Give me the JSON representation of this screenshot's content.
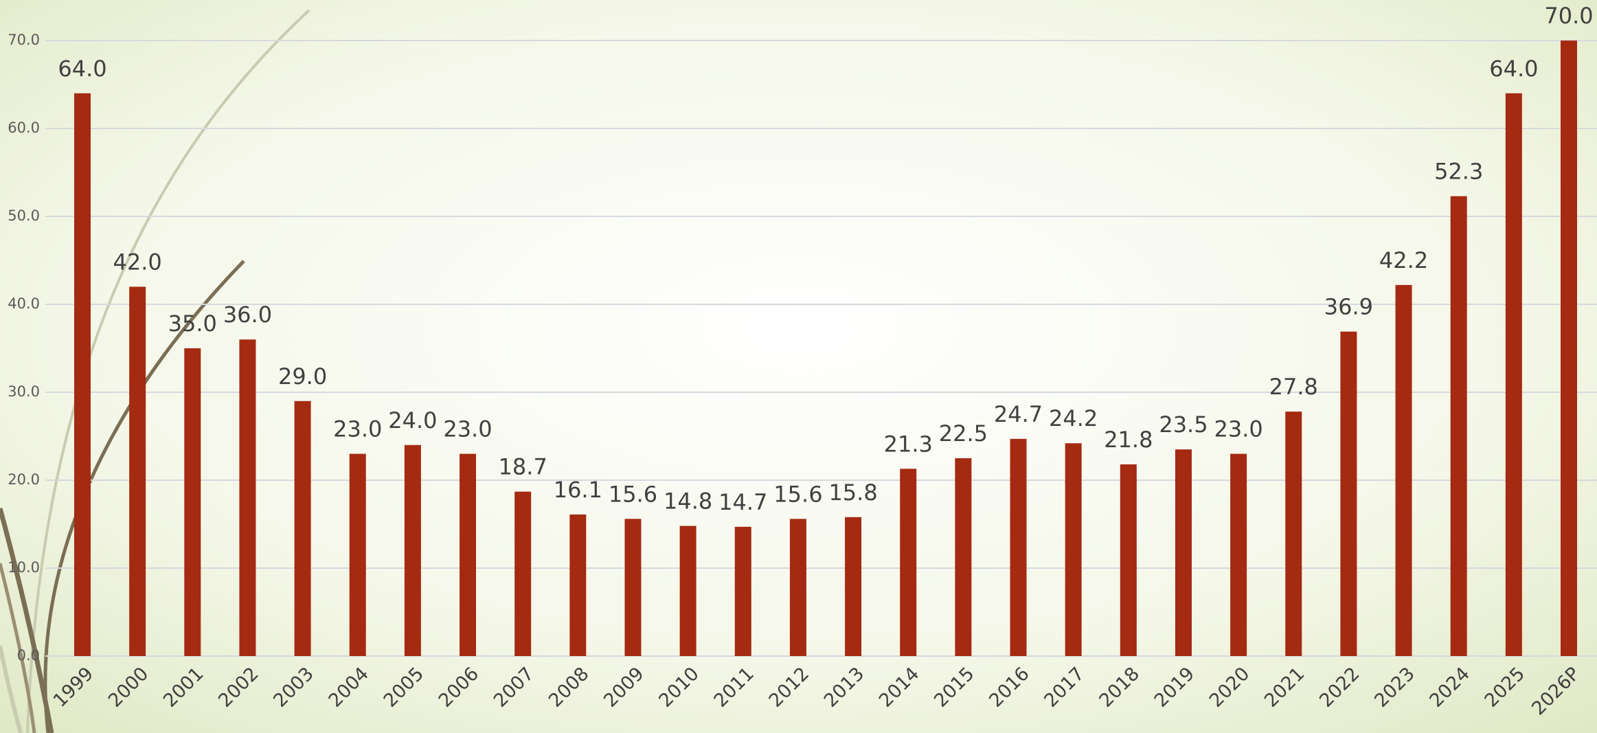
{
  "chart_data": {
    "type": "bar",
    "categories": [
      "1999",
      "2000",
      "2001",
      "2002",
      "2003",
      "2004",
      "2005",
      "2006",
      "2007",
      "2008",
      "2009",
      "2010",
      "2011",
      "2012",
      "2013",
      "2014",
      "2015",
      "2016",
      "2017",
      "2018",
      "2019",
      "2020",
      "2021",
      "2022",
      "2023",
      "2024",
      "2025",
      "2026P"
    ],
    "values": [
      64.0,
      42.0,
      35.0,
      36.0,
      29.0,
      23.0,
      24.0,
      23.0,
      18.7,
      16.1,
      15.6,
      14.8,
      14.7,
      15.6,
      15.8,
      21.3,
      22.5,
      24.7,
      24.2,
      21.8,
      23.5,
      23.0,
      27.8,
      36.9,
      42.2,
      52.3,
      64.0,
      70.0
    ],
    "value_labels": [
      "64.0",
      "42.0",
      "35.0",
      "36.0",
      "29.0",
      "23.0",
      "24.0",
      "23.0",
      "18.7",
      "16.1",
      "15.6",
      "14.8",
      "14.7",
      "15.6",
      "15.8",
      "21.3",
      "22.5",
      "24.7",
      "24.2",
      "21.8",
      "23.5",
      "23.0",
      "27.8",
      "36.9",
      "42.2",
      "52.3",
      "64.0",
      "70.0"
    ],
    "color": "#a52a12",
    "ylim": [
      0,
      70
    ],
    "yticks": [
      {
        "value": 0,
        "label": "0.0"
      },
      {
        "value": 10,
        "label": "10.0"
      },
      {
        "value": 20,
        "label": "20.0"
      },
      {
        "value": 30,
        "label": "30.0"
      },
      {
        "value": 40,
        "label": "40.0"
      },
      {
        "value": 50,
        "label": "50.0"
      },
      {
        "value": 60,
        "label": "60.0"
      },
      {
        "value": 70,
        "label": "70.0"
      }
    ],
    "grid": true
  }
}
